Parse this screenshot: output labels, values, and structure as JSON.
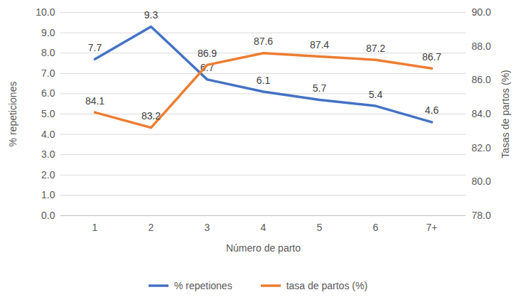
{
  "chart_data": {
    "type": "line",
    "categories": [
      "1",
      "2",
      "3",
      "4",
      "5",
      "6",
      "7+"
    ],
    "x_label": "Número de parto",
    "y_label": "% repeticiones",
    "y2_label": "Tasas de partos (%)",
    "ylim": [
      0,
      10
    ],
    "yticks": [
      {
        "value": 0,
        "label": "0.0"
      },
      {
        "value": 1,
        "label": "1.0"
      },
      {
        "value": 2,
        "label": "2.0"
      },
      {
        "value": 3,
        "label": "3.0"
      },
      {
        "value": 4,
        "label": "4.0"
      },
      {
        "value": 5,
        "label": "5.0"
      },
      {
        "value": 6,
        "label": "6.0"
      },
      {
        "value": 7,
        "label": "7.0"
      },
      {
        "value": 8,
        "label": "8.0"
      },
      {
        "value": 9,
        "label": "9.0"
      },
      {
        "value": 10,
        "label": "10.0"
      }
    ],
    "y2lim": [
      78,
      90
    ],
    "y2ticks": [
      {
        "value": 78,
        "label": "78.0"
      },
      {
        "value": 80,
        "label": "80.0"
      },
      {
        "value": 82,
        "label": "82.0"
      },
      {
        "value": 84,
        "label": "84.0"
      },
      {
        "value": 86,
        "label": "86.0"
      },
      {
        "value": 88,
        "label": "88.0"
      },
      {
        "value": 90,
        "label": "90.0"
      }
    ],
    "grid": true,
    "legend": "bottom",
    "data_labels": true,
    "series": [
      {
        "name": "% repetiones",
        "color": "#4472c4",
        "values": [
          7.7,
          9.3,
          6.7,
          6.1,
          5.7,
          5.4,
          4.6
        ]
      },
      {
        "name": "tasa de partos (%)",
        "color": "#ed7d31",
        "axis": "y2",
        "values": [
          84.1,
          83.2,
          86.9,
          87.6,
          87.4,
          87.2,
          86.7
        ]
      }
    ]
  }
}
